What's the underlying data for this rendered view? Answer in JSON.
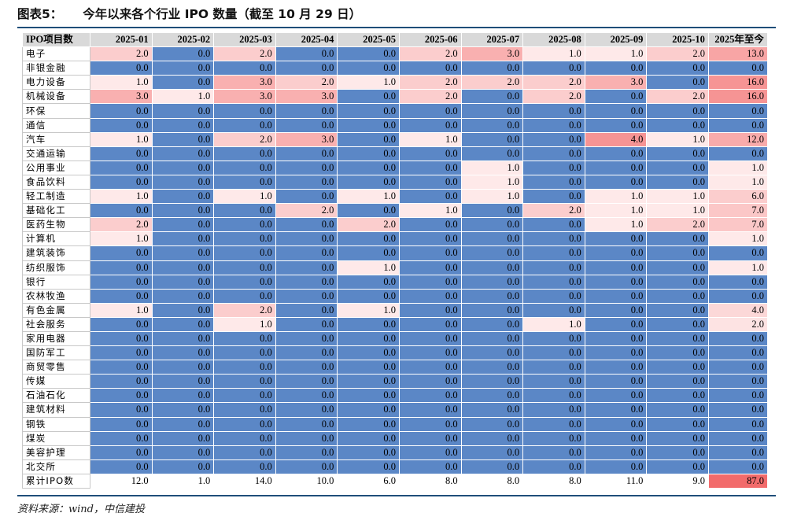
{
  "title": {
    "fig": "图表5：",
    "text": "今年以来各个行业 IPO 数量（截至 10 月 29 日）"
  },
  "table": {
    "corner": "IPO项目数",
    "columns": [
      "2025-01",
      "2025-02",
      "2025-03",
      "2025-04",
      "2025-05",
      "2025-06",
      "2025-07",
      "2025-08",
      "2025-09",
      "2025-10",
      "2025年至今"
    ],
    "rows": [
      {
        "label": "电子",
        "values": [
          "2.0",
          "0.0",
          "2.0",
          "0.0",
          "0.0",
          "2.0",
          "3.0",
          "1.0",
          "1.0",
          "2.0",
          "13.0"
        ]
      },
      {
        "label": "非银金融",
        "values": [
          "0.0",
          "0.0",
          "0.0",
          "0.0",
          "0.0",
          "0.0",
          "0.0",
          "0.0",
          "0.0",
          "0.0",
          "0.0"
        ]
      },
      {
        "label": "电力设备",
        "values": [
          "1.0",
          "0.0",
          "3.0",
          "2.0",
          "1.0",
          "2.0",
          "2.0",
          "2.0",
          "3.0",
          "0.0",
          "16.0"
        ]
      },
      {
        "label": "机械设备",
        "values": [
          "3.0",
          "1.0",
          "3.0",
          "3.0",
          "0.0",
          "2.0",
          "0.0",
          "2.0",
          "0.0",
          "2.0",
          "16.0"
        ]
      },
      {
        "label": "环保",
        "values": [
          "0.0",
          "0.0",
          "0.0",
          "0.0",
          "0.0",
          "0.0",
          "0.0",
          "0.0",
          "0.0",
          "0.0",
          "0.0"
        ]
      },
      {
        "label": "通信",
        "values": [
          "0.0",
          "0.0",
          "0.0",
          "0.0",
          "0.0",
          "0.0",
          "0.0",
          "0.0",
          "0.0",
          "0.0",
          "0.0"
        ]
      },
      {
        "label": "汽车",
        "values": [
          "1.0",
          "0.0",
          "2.0",
          "3.0",
          "0.0",
          "1.0",
          "0.0",
          "0.0",
          "4.0",
          "1.0",
          "12.0"
        ]
      },
      {
        "label": "交通运输",
        "values": [
          "0.0",
          "0.0",
          "0.0",
          "0.0",
          "0.0",
          "0.0",
          "0.0",
          "0.0",
          "0.0",
          "0.0",
          "0.0"
        ]
      },
      {
        "label": "公用事业",
        "values": [
          "0.0",
          "0.0",
          "0.0",
          "0.0",
          "0.0",
          "0.0",
          "1.0",
          "0.0",
          "0.0",
          "0.0",
          "1.0"
        ]
      },
      {
        "label": "食品饮料",
        "values": [
          "0.0",
          "0.0",
          "0.0",
          "0.0",
          "0.0",
          "0.0",
          "1.0",
          "0.0",
          "0.0",
          "0.0",
          "1.0"
        ]
      },
      {
        "label": "轻工制造",
        "values": [
          "1.0",
          "0.0",
          "1.0",
          "0.0",
          "1.0",
          "0.0",
          "1.0",
          "0.0",
          "1.0",
          "1.0",
          "6.0"
        ]
      },
      {
        "label": "基础化工",
        "values": [
          "0.0",
          "0.0",
          "0.0",
          "2.0",
          "0.0",
          "1.0",
          "0.0",
          "2.0",
          "1.0",
          "1.0",
          "7.0"
        ]
      },
      {
        "label": "医药生物",
        "values": [
          "2.0",
          "0.0",
          "0.0",
          "0.0",
          "2.0",
          "0.0",
          "0.0",
          "0.0",
          "1.0",
          "2.0",
          "7.0"
        ]
      },
      {
        "label": "计算机",
        "values": [
          "1.0",
          "0.0",
          "0.0",
          "0.0",
          "0.0",
          "0.0",
          "0.0",
          "0.0",
          "0.0",
          "0.0",
          "1.0"
        ]
      },
      {
        "label": "建筑装饰",
        "values": [
          "0.0",
          "0.0",
          "0.0",
          "0.0",
          "0.0",
          "0.0",
          "0.0",
          "0.0",
          "0.0",
          "0.0",
          "0.0"
        ]
      },
      {
        "label": "纺织服饰",
        "values": [
          "0.0",
          "0.0",
          "0.0",
          "0.0",
          "1.0",
          "0.0",
          "0.0",
          "0.0",
          "0.0",
          "0.0",
          "1.0"
        ]
      },
      {
        "label": "银行",
        "values": [
          "0.0",
          "0.0",
          "0.0",
          "0.0",
          "0.0",
          "0.0",
          "0.0",
          "0.0",
          "0.0",
          "0.0",
          "0.0"
        ]
      },
      {
        "label": "农林牧渔",
        "values": [
          "0.0",
          "0.0",
          "0.0",
          "0.0",
          "0.0",
          "0.0",
          "0.0",
          "0.0",
          "0.0",
          "0.0",
          "0.0"
        ]
      },
      {
        "label": "有色金属",
        "values": [
          "1.0",
          "0.0",
          "2.0",
          "0.0",
          "1.0",
          "0.0",
          "0.0",
          "0.0",
          "0.0",
          "0.0",
          "4.0"
        ]
      },
      {
        "label": "社会服务",
        "values": [
          "0.0",
          "0.0",
          "1.0",
          "0.0",
          "0.0",
          "0.0",
          "0.0",
          "1.0",
          "0.0",
          "0.0",
          "2.0"
        ]
      },
      {
        "label": "家用电器",
        "values": [
          "0.0",
          "0.0",
          "0.0",
          "0.0",
          "0.0",
          "0.0",
          "0.0",
          "0.0",
          "0.0",
          "0.0",
          "0.0"
        ]
      },
      {
        "label": "国防军工",
        "values": [
          "0.0",
          "0.0",
          "0.0",
          "0.0",
          "0.0",
          "0.0",
          "0.0",
          "0.0",
          "0.0",
          "0.0",
          "0.0"
        ]
      },
      {
        "label": "商贸零售",
        "values": [
          "0.0",
          "0.0",
          "0.0",
          "0.0",
          "0.0",
          "0.0",
          "0.0",
          "0.0",
          "0.0",
          "0.0",
          "0.0"
        ]
      },
      {
        "label": "传媒",
        "values": [
          "0.0",
          "0.0",
          "0.0",
          "0.0",
          "0.0",
          "0.0",
          "0.0",
          "0.0",
          "0.0",
          "0.0",
          "0.0"
        ]
      },
      {
        "label": "石油石化",
        "values": [
          "0.0",
          "0.0",
          "0.0",
          "0.0",
          "0.0",
          "0.0",
          "0.0",
          "0.0",
          "0.0",
          "0.0",
          "0.0"
        ]
      },
      {
        "label": "建筑材料",
        "values": [
          "0.0",
          "0.0",
          "0.0",
          "0.0",
          "0.0",
          "0.0",
          "0.0",
          "0.0",
          "0.0",
          "0.0",
          "0.0"
        ]
      },
      {
        "label": "钢铁",
        "values": [
          "0.0",
          "0.0",
          "0.0",
          "0.0",
          "0.0",
          "0.0",
          "0.0",
          "0.0",
          "0.0",
          "0.0",
          "0.0"
        ]
      },
      {
        "label": "煤炭",
        "values": [
          "0.0",
          "0.0",
          "0.0",
          "0.0",
          "0.0",
          "0.0",
          "0.0",
          "0.0",
          "0.0",
          "0.0",
          "0.0"
        ]
      },
      {
        "label": "美容护理",
        "values": [
          "0.0",
          "0.0",
          "0.0",
          "0.0",
          "0.0",
          "0.0",
          "0.0",
          "0.0",
          "0.0",
          "0.0",
          "0.0"
        ]
      },
      {
        "label": "北交所",
        "values": [
          "0.0",
          "0.0",
          "0.0",
          "0.0",
          "0.0",
          "0.0",
          "0.0",
          "0.0",
          "0.0",
          "0.0",
          "0.0"
        ]
      },
      {
        "label": "累计IPO数",
        "values": [
          "12.0",
          "1.0",
          "14.0",
          "10.0",
          "6.0",
          "8.0",
          "8.0",
          "8.0",
          "11.0",
          "9.0",
          "87.0"
        ]
      }
    ]
  },
  "colors": {
    "zero": "#5b87c6",
    "high": "#f26b6b",
    "low": "#fff4f4",
    "total_highlight": "#f26b6b",
    "total_background": "#ffffff",
    "rule": "#1f4e79"
  },
  "source": "资料来源：wind，中信建投"
}
